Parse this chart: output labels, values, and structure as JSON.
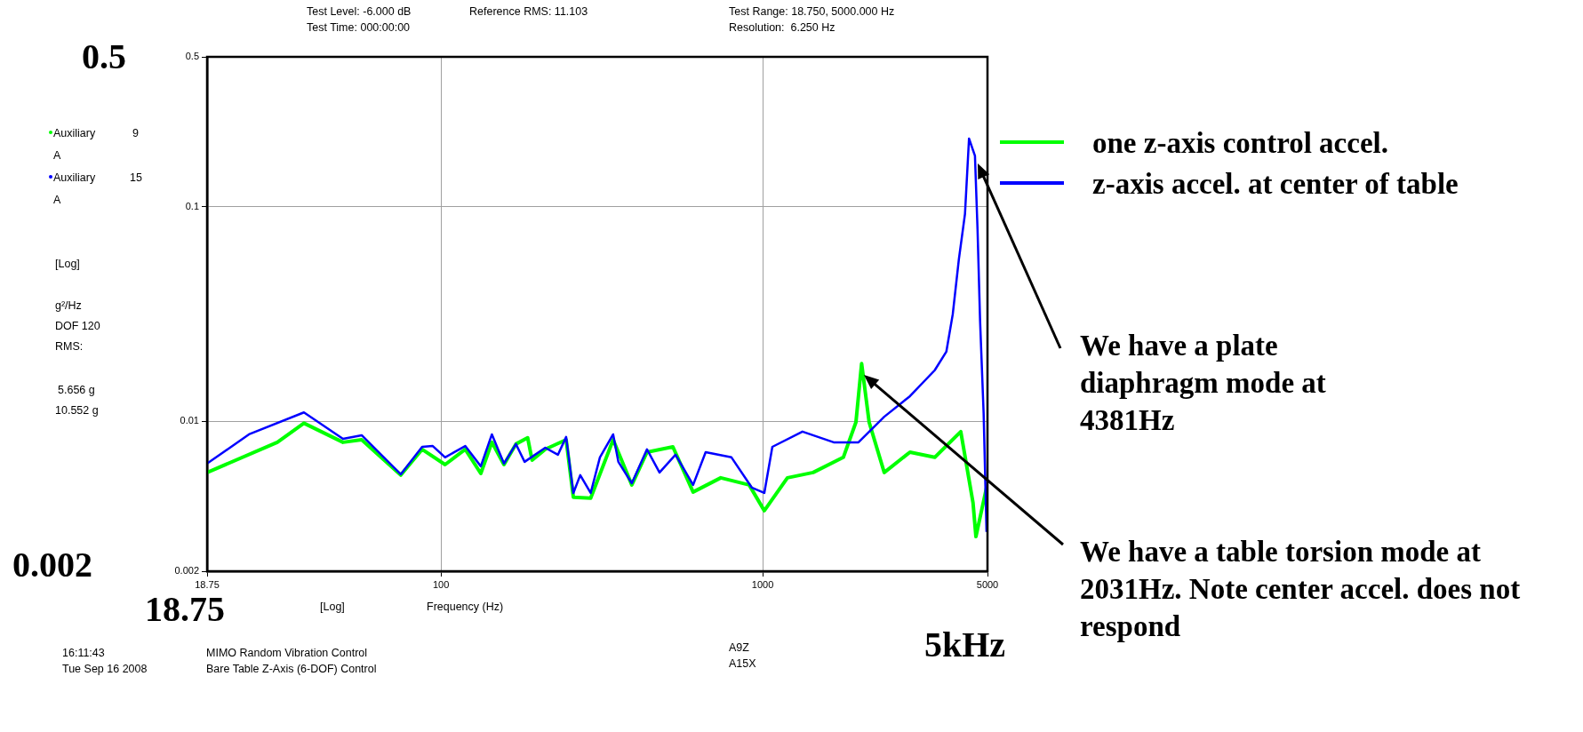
{
  "chart_data": {
    "type": "line",
    "xlabel": "Frequency (Hz)",
    "log": "xy",
    "grid": true,
    "legend": "right",
    "xlim": [
      18.75,
      5000
    ],
    "xticks": [
      18.75,
      100,
      1000,
      5000
    ],
    "ylim": [
      0.002,
      0.5
    ],
    "yticks": [
      0.5,
      0.1,
      0.01,
      0.002
    ],
    "series": [
      {
        "name": "one z-axis control accel.",
        "color": "#00ff00",
        "x": [
          18.75,
          31.0,
          37.5,
          49.6,
          56.7,
          75.0,
          87.4,
          103,
          119,
          133,
          144,
          157,
          171,
          186,
          192,
          211,
          245,
          258,
          292,
          343,
          392,
          437,
          526,
          608,
          741,
          908,
          1012,
          1194,
          1435,
          1782,
          1950,
          2031,
          2143,
          2388,
          2871,
          3428,
          4130,
          4508,
          4603,
          4966
        ],
        "values": [
          0.00577,
          0.00798,
          0.0098,
          0.00798,
          0.0082,
          0.00561,
          0.0074,
          0.00628,
          0.0074,
          0.00571,
          0.00798,
          0.00628,
          0.00783,
          0.00838,
          0.00659,
          0.0074,
          0.0082,
          0.00442,
          0.00438,
          0.0082,
          0.00505,
          0.00718,
          0.0076,
          0.00468,
          0.00545,
          0.00505,
          0.00383,
          0.00545,
          0.00577,
          0.00679,
          0.0099,
          0.0186,
          0.0099,
          0.00577,
          0.00718,
          0.00679,
          0.00895,
          0.00417,
          0.0029,
          0.00491
        ]
      },
      {
        "name": "z-axis accel. at center of table",
        "color": "#0000ff",
        "x": [
          18.75,
          25.3,
          37.5,
          49.6,
          56.7,
          75.0,
          87.4,
          94.3,
          103,
          119,
          133,
          144,
          157,
          171,
          182,
          211,
          231,
          245,
          258,
          271,
          292,
          312,
          343,
          356,
          392,
          437,
          478,
          536,
          608,
          665,
          800,
          925,
          1012,
          1072,
          1330,
          1663,
          1986,
          2388,
          2871,
          3428,
          3724,
          3899,
          4074,
          4256,
          4381,
          4571,
          4656,
          4742,
          4864,
          4966
        ],
        "values": [
          0.00635,
          0.00869,
          0.011,
          0.00828,
          0.00861,
          0.00566,
          0.0076,
          0.00767,
          0.00679,
          0.00767,
          0.00617,
          0.00869,
          0.00635,
          0.00783,
          0.00647,
          0.00753,
          0.00698,
          0.00845,
          0.00463,
          0.00561,
          0.00463,
          0.00679,
          0.00869,
          0.00647,
          0.00514,
          0.0074,
          0.00577,
          0.00698,
          0.00505,
          0.00718,
          0.00679,
          0.00491,
          0.00463,
          0.0076,
          0.00895,
          0.00798,
          0.00798,
          0.0105,
          0.0131,
          0.0173,
          0.0211,
          0.0315,
          0.0569,
          0.0925,
          0.208,
          0.173,
          0.0787,
          0.0294,
          0.0109,
          0.00305
        ]
      }
    ],
    "annotations": [
      "Test Level: -6.000 dB",
      "Test Time: 000:00:00",
      "Reference RMS: 11.103",
      "Test Range: 18.750, 5000.000 Hz",
      "Resolution:  6.250 Hz",
      "Auxiliary",
      "9",
      "A",
      "Auxiliary",
      "15",
      "A",
      "[Log]",
      "DOF 120",
      "RMS:",
      "5.656 g",
      "10.552 g",
      "[Log]",
      "16:11:43",
      "Tue Sep 16 2008",
      "MIMO Random Vibration Control",
      "Bare Table Z-Axis (6-DOF) Control",
      "A9Z",
      "A15X",
      "0.5",
      "0.002",
      "18.75",
      "5kHz",
      "We have a plate diaphragm mode at 4381Hz",
      "We have a table torsion mode at 2031Hz. Note center accel. does not respond",
      "g²/Hz"
    ]
  }
}
